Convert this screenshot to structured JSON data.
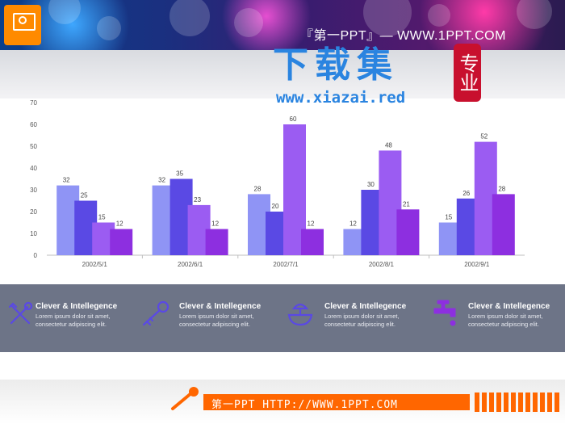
{
  "header": {
    "site_title": "『第一PPT』— WWW.1PPT.COM",
    "watermark_cn": "下载集",
    "watermark_seal": "专业",
    "watermark_url": "www.xiazai.red"
  },
  "chart_data": {
    "type": "bar",
    "categories": [
      "2002/5/1",
      "2002/6/1",
      "2002/7/1",
      "2002/8/1",
      "2002/9/1"
    ],
    "series": [
      {
        "values": [
          32,
          32,
          28,
          12,
          15
        ]
      },
      {
        "values": [
          25,
          35,
          20,
          30,
          26
        ]
      },
      {
        "values": [
          15,
          23,
          60,
          48,
          52
        ]
      },
      {
        "values": [
          12,
          12,
          12,
          21,
          28
        ]
      }
    ],
    "yticks": [
      0,
      10,
      20,
      30,
      40,
      50,
      60,
      70
    ],
    "ylim": [
      0,
      70
    ],
    "grid": false,
    "legend": "none",
    "colors": [
      "#8f94f5",
      "#5a49e4",
      "#9b5cf2",
      "#8d2fe0"
    ]
  },
  "features": [
    {
      "icon": "tools-icon",
      "title": "Clever & Intellegence",
      "desc_line1": "Lorem ipsum dolor sit amet,",
      "desc_line2": "consectetur adipiscing elit."
    },
    {
      "icon": "key-icon",
      "title": "Clever & Intellegence",
      "desc_line1": "Lorem ipsum dolor sit amet,",
      "desc_line2": "consectetur adipiscing elit."
    },
    {
      "icon": "juicer-icon",
      "title": "Clever & Intellegence",
      "desc_line1": "Lorem ipsum dolor sit amet,",
      "desc_line2": "consectetur adipiscing elit."
    },
    {
      "icon": "faucet-icon",
      "title": "Clever & Intellegence",
      "desc_line1": "Lorem ipsum dolor sit amet,",
      "desc_line2": "consectetur adipiscing elit."
    }
  ],
  "footer": {
    "text": "第一PPT HTTP://WWW.1PPT.COM"
  },
  "colors": {
    "icon": "#5a49e4",
    "feature_band": "#6d7487",
    "footer_accent": "#ff6600"
  }
}
